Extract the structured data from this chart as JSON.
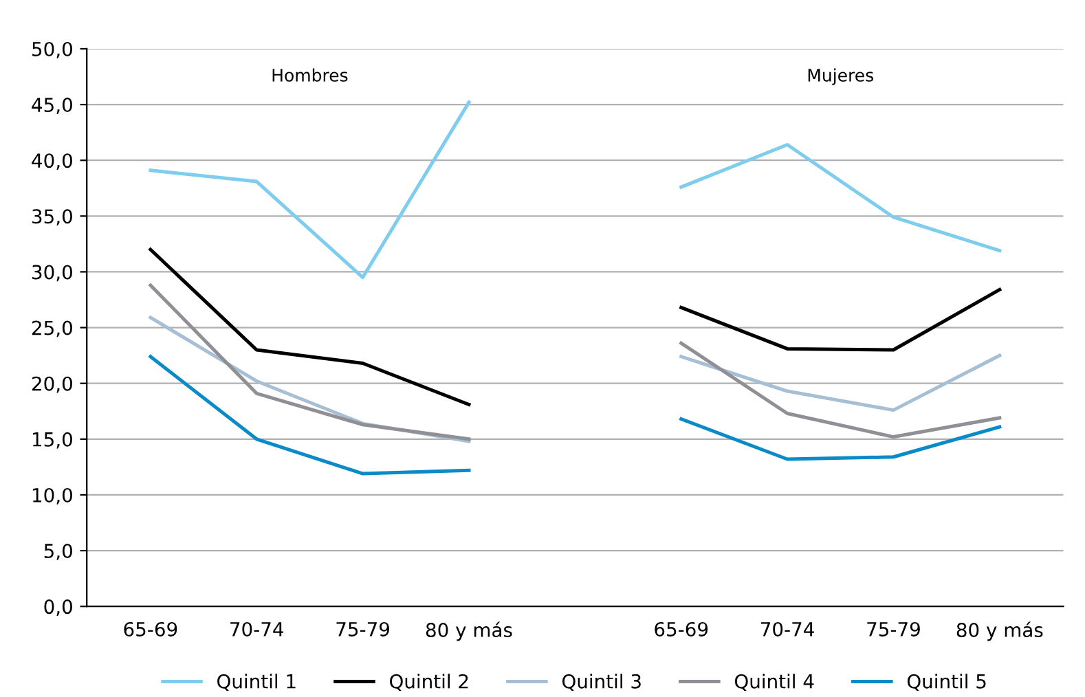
{
  "chart_data": {
    "type": "line",
    "categories": [
      "65-69",
      "70-74",
      "75-79",
      "80 y más",
      null,
      "65-69",
      "70-74",
      "75-79",
      "80 y más"
    ],
    "annotations": [
      "Hombres",
      "Mujeres"
    ],
    "series": [
      {
        "name": "Quintil 1",
        "color": "#7fcdee",
        "values": [
          39.1,
          38.1,
          29.5,
          45.2,
          null,
          37.6,
          41.4,
          34.9,
          31.9
        ]
      },
      {
        "name": "Quintil 2",
        "color": "#000000",
        "values": [
          32.0,
          23.0,
          21.8,
          18.1,
          null,
          26.8,
          23.1,
          23.0,
          28.4
        ]
      },
      {
        "name": "Quintil 3",
        "color": "#a6bfd4",
        "values": [
          25.9,
          20.2,
          16.4,
          14.8,
          null,
          22.4,
          19.3,
          17.6,
          22.5
        ]
      },
      {
        "name": "Quintil 4",
        "color": "#8f8f95",
        "values": [
          28.8,
          19.1,
          16.3,
          15.0,
          null,
          23.6,
          17.3,
          15.2,
          16.9
        ]
      },
      {
        "name": "Quintil 5",
        "color": "#0a8ac6",
        "values": [
          22.4,
          15.0,
          11.9,
          12.2,
          null,
          16.8,
          13.2,
          13.4,
          16.1
        ]
      }
    ],
    "ylim": [
      0,
      50
    ],
    "yticks": [
      {
        "value": 0,
        "label": "0,0"
      },
      {
        "value": 5,
        "label": "5,0"
      },
      {
        "value": 10,
        "label": "10,0"
      },
      {
        "value": 15,
        "label": "15,0"
      },
      {
        "value": 20,
        "label": "20,0"
      },
      {
        "value": 25,
        "label": "25,0"
      },
      {
        "value": 30,
        "label": "30,0"
      },
      {
        "value": 35,
        "label": "35,0"
      },
      {
        "value": 40,
        "label": "40,0"
      },
      {
        "value": 45,
        "label": "45,0"
      },
      {
        "value": 50,
        "label": "50,0"
      }
    ],
    "grid": "y",
    "legend": "bottom",
    "marker": "none",
    "line_style": "solid"
  }
}
